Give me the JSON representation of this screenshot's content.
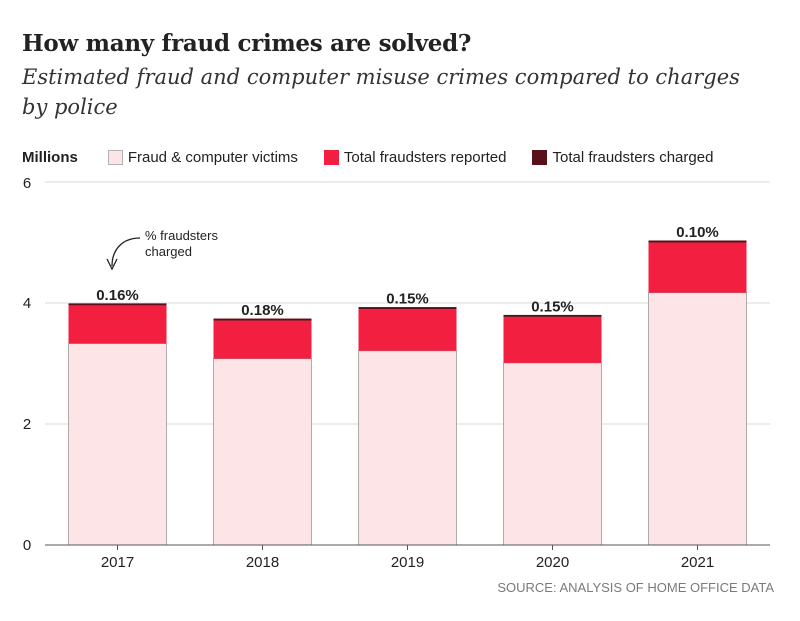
{
  "title": "How many fraud crimes are solved?",
  "subtitle": "Estimated fraud and computer misuse crimes compared to charges by police",
  "legend": {
    "unit": "Millions",
    "victims": "Fraud & computer victims",
    "reported": "Total fraudsters reported",
    "charged": "Total fraudsters charged"
  },
  "annotation": "% fraudsters charged",
  "source": "SOURCE: ANALYSIS OF HOME OFFICE DATA",
  "colors": {
    "victims": "#fde4e6",
    "reported": "#f21f40",
    "charged": "#5a1018",
    "grid": "#d9d9d9",
    "axis": "#555555",
    "text": "#222222"
  },
  "chart_data": {
    "type": "bar",
    "stacked": true,
    "categories": [
      "2017",
      "2018",
      "2019",
      "2020",
      "2021"
    ],
    "series": [
      {
        "name": "Fraud & computer victims",
        "values": [
          3.33,
          3.08,
          3.21,
          3.01,
          4.17
        ]
      },
      {
        "name": "Total fraudsters reported",
        "values": [
          0.63,
          0.63,
          0.69,
          0.76,
          0.83
        ]
      },
      {
        "name": "Total fraudsters charged",
        "values": [
          0.006,
          0.007,
          0.006,
          0.006,
          0.005
        ]
      }
    ],
    "labels": [
      "0.16%",
      "0.18%",
      "0.15%",
      "0.15%",
      "0.10%"
    ],
    "ylabel": "Millions",
    "ylim": [
      0,
      6
    ],
    "yticks": [
      0,
      2,
      4,
      6
    ],
    "grid": true
  }
}
